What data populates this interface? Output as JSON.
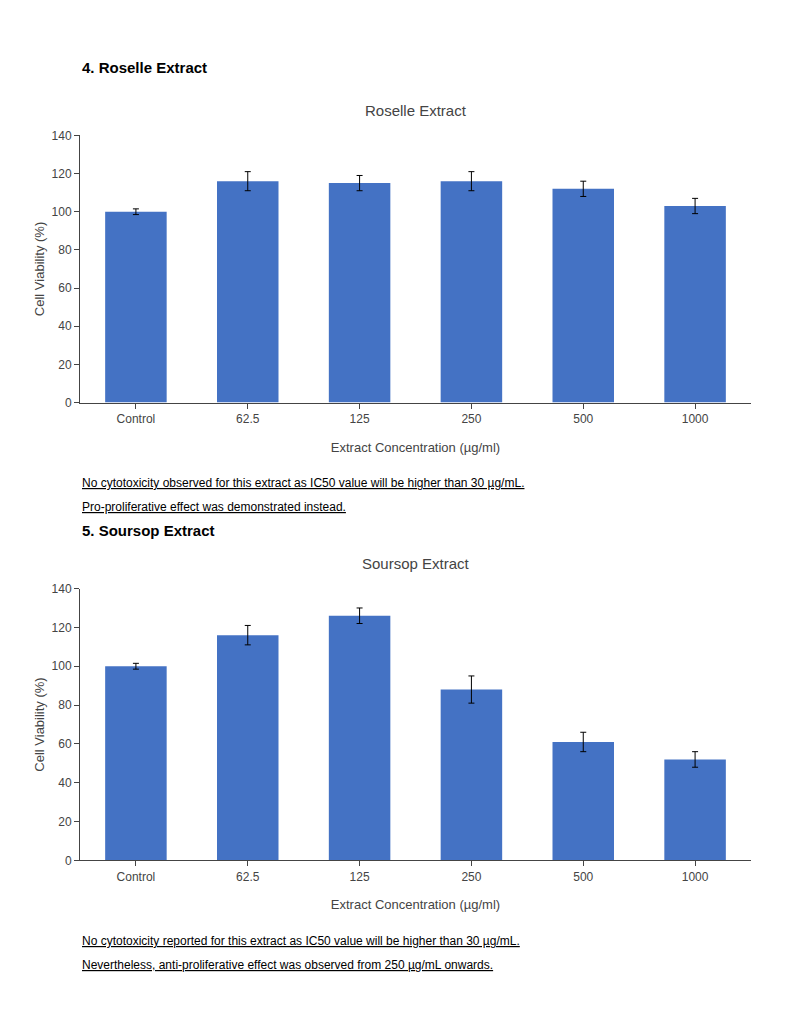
{
  "chart_data": [
    {
      "type": "bar",
      "title": "Roselle Extract",
      "categories": [
        "Control",
        "62.5",
        "125",
        "250",
        "500",
        "1000"
      ],
      "values": [
        100,
        116,
        115,
        116,
        112,
        103
      ],
      "errors": [
        1.5,
        5,
        4,
        5,
        4,
        4
      ],
      "color": "#4472C4",
      "xlabel": "Extract Concentration (µg/ml)",
      "ylabel": "Cell Viability (%)",
      "ylim": [
        0,
        140
      ],
      "yticks": [
        0,
        20,
        40,
        60,
        80,
        100,
        120,
        140
      ],
      "grid": false,
      "annotations": [
        "4. Roselle Extract",
        "No cytotoxicity observed for this extract as IC50 value will be higher than 30 µg/mL.",
        "Pro-proliferative effect was demonstrated instead."
      ]
    },
    {
      "type": "bar",
      "title": "Soursop Extract",
      "categories": [
        "Control",
        "62.5",
        "125",
        "250",
        "500",
        "1000"
      ],
      "values": [
        100,
        116,
        126,
        88,
        61,
        52
      ],
      "errors": [
        1.5,
        5,
        4,
        7,
        5,
        4
      ],
      "color": "#4472C4",
      "xlabel": "Extract Concentration (µg/ml)",
      "ylabel": "Cell Viability (%)",
      "ylim": [
        0,
        140
      ],
      "yticks": [
        0,
        20,
        40,
        60,
        80,
        100,
        120,
        140
      ],
      "grid": false,
      "annotations": [
        "5. Soursop Extract",
        "No cytotoxicity reported for this extract as IC50 value will be higher than 30 µg/mL.",
        "Nevertheless, anti-proliferative effect was observed from 250 µg/mL onwards."
      ]
    }
  ]
}
